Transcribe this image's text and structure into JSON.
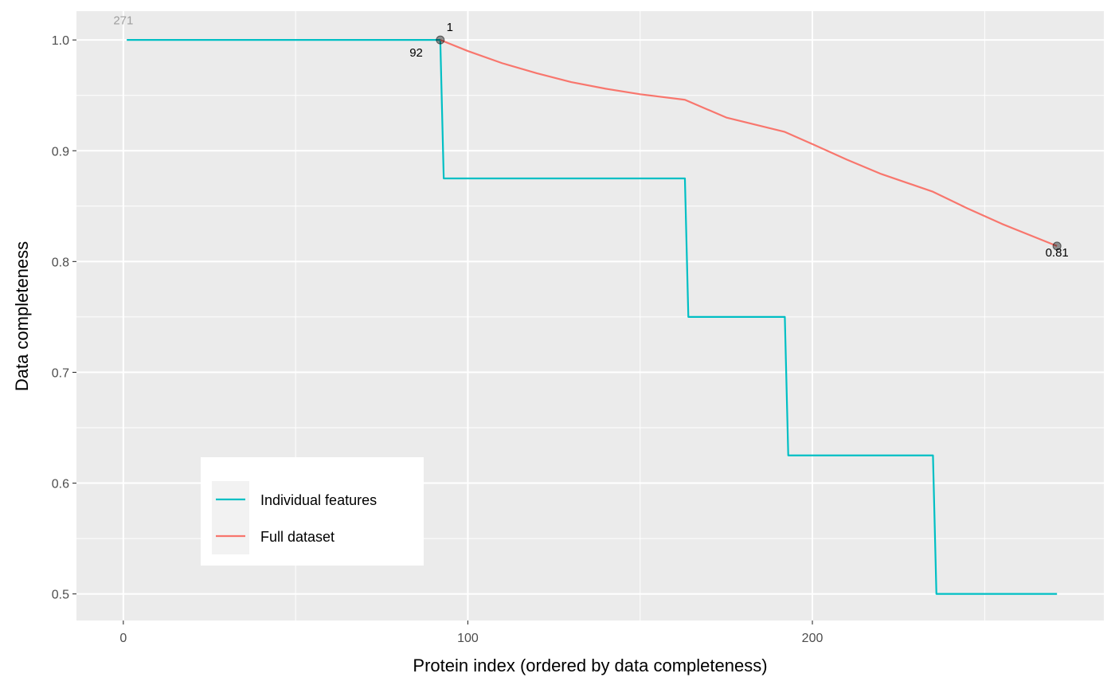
{
  "chart_data": {
    "type": "line",
    "xlabel": "Protein index (ordered by data completeness)",
    "ylabel": "Data completeness",
    "xlim": [
      -13.6,
      284.6
    ],
    "ylim": [
      0.476,
      1.026
    ],
    "x_ticks": [
      0,
      100,
      200
    ],
    "x_tick_labels": [
      "0",
      "100",
      "200"
    ],
    "y_ticks": [
      0.5,
      0.6,
      0.7,
      0.8,
      0.9,
      1.0
    ],
    "y_tick_labels": [
      "0.5",
      "0.6",
      "0.7",
      "0.8",
      "0.9",
      "1.0"
    ],
    "grid": true,
    "legend_position": "bottom-left inside plot",
    "series": [
      {
        "name": "Individual features",
        "color": "#00BFC4",
        "step": true,
        "points": [
          [
            1,
            1.0
          ],
          [
            92,
            1.0
          ],
          [
            93,
            0.875
          ],
          [
            163,
            0.875
          ],
          [
            164,
            0.75
          ],
          [
            192,
            0.75
          ],
          [
            193,
            0.625
          ],
          [
            235,
            0.625
          ],
          [
            236,
            0.5
          ],
          [
            271,
            0.5
          ]
        ]
      },
      {
        "name": "Full dataset",
        "color": "#F8766D",
        "step": false,
        "points": [
          [
            92,
            1.0
          ],
          [
            100,
            0.99
          ],
          [
            110,
            0.979
          ],
          [
            120,
            0.97
          ],
          [
            130,
            0.962
          ],
          [
            140,
            0.956
          ],
          [
            150,
            0.951
          ],
          [
            163,
            0.946
          ],
          [
            175,
            0.93
          ],
          [
            192,
            0.917
          ],
          [
            200,
            0.906
          ],
          [
            210,
            0.892
          ],
          [
            220,
            0.879
          ],
          [
            235,
            0.863
          ],
          [
            245,
            0.848
          ],
          [
            255,
            0.834
          ],
          [
            271,
            0.814
          ]
        ]
      }
    ],
    "markers": [
      {
        "x": 92,
        "y": 1.0
      },
      {
        "x": 271,
        "y": 0.814
      }
    ],
    "annotations": [
      {
        "text": "271",
        "x": 0,
        "y": 1.014,
        "style": "grey"
      },
      {
        "text": "1",
        "x": 93.8,
        "y": 1.008,
        "style": "normal"
      },
      {
        "text": "92",
        "x": 85,
        "y": 0.985,
        "style": "normal"
      },
      {
        "text": "0.81",
        "x": 271,
        "y": 0.8045,
        "style": "normal"
      }
    ]
  }
}
